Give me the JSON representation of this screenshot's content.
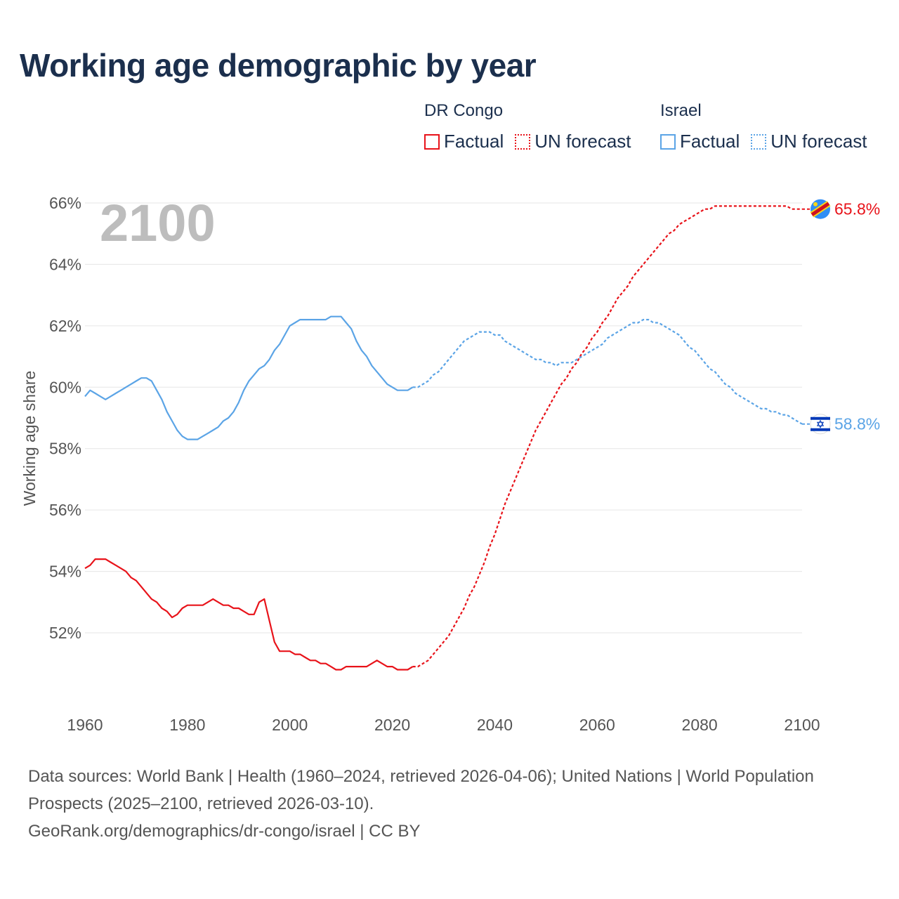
{
  "title": "Working age demographic by year",
  "colors": {
    "congo": "#e8131a",
    "israel": "#5ba4e6",
    "title": "#1b2f4d",
    "muted": "#555555"
  },
  "legend": [
    {
      "name": "DR Congo",
      "factual": "Factual",
      "forecast": "UN forecast"
    },
    {
      "name": "Israel",
      "factual": "Factual",
      "forecast": "UN forecast"
    }
  ],
  "chart_data": {
    "type": "line",
    "title": "Working age demographic by year",
    "xlabel": "",
    "ylabel": "Working age share",
    "xlim": [
      1960,
      2100
    ],
    "ylim": [
      50,
      66.5
    ],
    "x_ticks": [
      "1960",
      "1980",
      "2000",
      "2020",
      "2040",
      "2060",
      "2080",
      "2100"
    ],
    "y_ticks": [
      "52%",
      "54%",
      "56%",
      "58%",
      "60%",
      "62%",
      "64%",
      "66%"
    ],
    "year_label": "2100",
    "forecast_start": 2024,
    "series": [
      {
        "name": "DR Congo",
        "end_label": "65.8%",
        "points": [
          [
            1960,
            54.1
          ],
          [
            1961,
            54.2
          ],
          [
            1962,
            54.4
          ],
          [
            1963,
            54.4
          ],
          [
            1964,
            54.4
          ],
          [
            1965,
            54.3
          ],
          [
            1966,
            54.2
          ],
          [
            1967,
            54.1
          ],
          [
            1968,
            54.0
          ],
          [
            1969,
            53.8
          ],
          [
            1970,
            53.7
          ],
          [
            1971,
            53.5
          ],
          [
            1972,
            53.3
          ],
          [
            1973,
            53.1
          ],
          [
            1974,
            53.0
          ],
          [
            1975,
            52.8
          ],
          [
            1976,
            52.7
          ],
          [
            1977,
            52.5
          ],
          [
            1978,
            52.6
          ],
          [
            1979,
            52.8
          ],
          [
            1980,
            52.9
          ],
          [
            1981,
            52.9
          ],
          [
            1982,
            52.9
          ],
          [
            1983,
            52.9
          ],
          [
            1984,
            53.0
          ],
          [
            1985,
            53.1
          ],
          [
            1986,
            53.0
          ],
          [
            1987,
            52.9
          ],
          [
            1988,
            52.9
          ],
          [
            1989,
            52.8
          ],
          [
            1990,
            52.8
          ],
          [
            1991,
            52.7
          ],
          [
            1992,
            52.6
          ],
          [
            1993,
            52.6
          ],
          [
            1994,
            53.0
          ],
          [
            1995,
            53.1
          ],
          [
            1996,
            52.4
          ],
          [
            1997,
            51.7
          ],
          [
            1998,
            51.4
          ],
          [
            1999,
            51.4
          ],
          [
            2000,
            51.4
          ],
          [
            2001,
            51.3
          ],
          [
            2002,
            51.3
          ],
          [
            2003,
            51.2
          ],
          [
            2004,
            51.1
          ],
          [
            2005,
            51.1
          ],
          [
            2006,
            51.0
          ],
          [
            2007,
            51.0
          ],
          [
            2008,
            50.9
          ],
          [
            2009,
            50.8
          ],
          [
            2010,
            50.8
          ],
          [
            2011,
            50.9
          ],
          [
            2012,
            50.9
          ],
          [
            2013,
            50.9
          ],
          [
            2014,
            50.9
          ],
          [
            2015,
            50.9
          ],
          [
            2016,
            51.0
          ],
          [
            2017,
            51.1
          ],
          [
            2018,
            51.0
          ],
          [
            2019,
            50.9
          ],
          [
            2020,
            50.9
          ],
          [
            2021,
            50.8
          ],
          [
            2022,
            50.8
          ],
          [
            2023,
            50.8
          ],
          [
            2024,
            50.9
          ],
          [
            2025,
            50.9
          ],
          [
            2026,
            51.0
          ],
          [
            2027,
            51.1
          ],
          [
            2028,
            51.3
          ],
          [
            2029,
            51.5
          ],
          [
            2030,
            51.7
          ],
          [
            2031,
            51.9
          ],
          [
            2032,
            52.2
          ],
          [
            2033,
            52.5
          ],
          [
            2034,
            52.8
          ],
          [
            2035,
            53.2
          ],
          [
            2036,
            53.5
          ],
          [
            2037,
            53.9
          ],
          [
            2038,
            54.3
          ],
          [
            2039,
            54.8
          ],
          [
            2040,
            55.2
          ],
          [
            2041,
            55.7
          ],
          [
            2042,
            56.2
          ],
          [
            2043,
            56.6
          ],
          [
            2044,
            57.0
          ],
          [
            2045,
            57.4
          ],
          [
            2046,
            57.8
          ],
          [
            2047,
            58.2
          ],
          [
            2048,
            58.6
          ],
          [
            2049,
            58.9
          ],
          [
            2050,
            59.2
          ],
          [
            2051,
            59.5
          ],
          [
            2052,
            59.8
          ],
          [
            2053,
            60.1
          ],
          [
            2054,
            60.3
          ],
          [
            2055,
            60.6
          ],
          [
            2056,
            60.8
          ],
          [
            2057,
            61.1
          ],
          [
            2058,
            61.3
          ],
          [
            2059,
            61.6
          ],
          [
            2060,
            61.8
          ],
          [
            2061,
            62.1
          ],
          [
            2062,
            62.3
          ],
          [
            2063,
            62.6
          ],
          [
            2064,
            62.9
          ],
          [
            2065,
            63.1
          ],
          [
            2066,
            63.3
          ],
          [
            2067,
            63.6
          ],
          [
            2068,
            63.8
          ],
          [
            2069,
            64.0
          ],
          [
            2070,
            64.2
          ],
          [
            2071,
            64.4
          ],
          [
            2072,
            64.6
          ],
          [
            2073,
            64.8
          ],
          [
            2074,
            65.0
          ],
          [
            2075,
            65.1
          ],
          [
            2076,
            65.3
          ],
          [
            2077,
            65.4
          ],
          [
            2078,
            65.5
          ],
          [
            2079,
            65.6
          ],
          [
            2080,
            65.7
          ],
          [
            2081,
            65.8
          ],
          [
            2082,
            65.8
          ],
          [
            2083,
            65.9
          ],
          [
            2084,
            65.9
          ],
          [
            2085,
            65.9
          ],
          [
            2086,
            65.9
          ],
          [
            2087,
            65.9
          ],
          [
            2088,
            65.9
          ],
          [
            2089,
            65.9
          ],
          [
            2090,
            65.9
          ],
          [
            2091,
            65.9
          ],
          [
            2092,
            65.9
          ],
          [
            2093,
            65.9
          ],
          [
            2094,
            65.9
          ],
          [
            2095,
            65.9
          ],
          [
            2096,
            65.9
          ],
          [
            2097,
            65.9
          ],
          [
            2098,
            65.8
          ],
          [
            2099,
            65.8
          ],
          [
            2100,
            65.8
          ]
        ]
      },
      {
        "name": "Israel",
        "end_label": "58.8%",
        "points": [
          [
            1960,
            59.7
          ],
          [
            1961,
            59.9
          ],
          [
            1962,
            59.8
          ],
          [
            1963,
            59.7
          ],
          [
            1964,
            59.6
          ],
          [
            1965,
            59.7
          ],
          [
            1966,
            59.8
          ],
          [
            1967,
            59.9
          ],
          [
            1968,
            60.0
          ],
          [
            1969,
            60.1
          ],
          [
            1970,
            60.2
          ],
          [
            1971,
            60.3
          ],
          [
            1972,
            60.3
          ],
          [
            1973,
            60.2
          ],
          [
            1974,
            59.9
          ],
          [
            1975,
            59.6
          ],
          [
            1976,
            59.2
          ],
          [
            1977,
            58.9
          ],
          [
            1978,
            58.6
          ],
          [
            1979,
            58.4
          ],
          [
            1980,
            58.3
          ],
          [
            1981,
            58.3
          ],
          [
            1982,
            58.3
          ],
          [
            1983,
            58.4
          ],
          [
            1984,
            58.5
          ],
          [
            1985,
            58.6
          ],
          [
            1986,
            58.7
          ],
          [
            1987,
            58.9
          ],
          [
            1988,
            59.0
          ],
          [
            1989,
            59.2
          ],
          [
            1990,
            59.5
          ],
          [
            1991,
            59.9
          ],
          [
            1992,
            60.2
          ],
          [
            1993,
            60.4
          ],
          [
            1994,
            60.6
          ],
          [
            1995,
            60.7
          ],
          [
            1996,
            60.9
          ],
          [
            1997,
            61.2
          ],
          [
            1998,
            61.4
          ],
          [
            1999,
            61.7
          ],
          [
            2000,
            62.0
          ],
          [
            2001,
            62.1
          ],
          [
            2002,
            62.2
          ],
          [
            2003,
            62.2
          ],
          [
            2004,
            62.2
          ],
          [
            2005,
            62.2
          ],
          [
            2006,
            62.2
          ],
          [
            2007,
            62.2
          ],
          [
            2008,
            62.3
          ],
          [
            2009,
            62.3
          ],
          [
            2010,
            62.3
          ],
          [
            2011,
            62.1
          ],
          [
            2012,
            61.9
          ],
          [
            2013,
            61.5
          ],
          [
            2014,
            61.2
          ],
          [
            2015,
            61.0
          ],
          [
            2016,
            60.7
          ],
          [
            2017,
            60.5
          ],
          [
            2018,
            60.3
          ],
          [
            2019,
            60.1
          ],
          [
            2020,
            60.0
          ],
          [
            2021,
            59.9
          ],
          [
            2022,
            59.9
          ],
          [
            2023,
            59.9
          ],
          [
            2024,
            60.0
          ],
          [
            2025,
            60.0
          ],
          [
            2026,
            60.1
          ],
          [
            2027,
            60.2
          ],
          [
            2028,
            60.4
          ],
          [
            2029,
            60.5
          ],
          [
            2030,
            60.7
          ],
          [
            2031,
            60.9
          ],
          [
            2032,
            61.1
          ],
          [
            2033,
            61.3
          ],
          [
            2034,
            61.5
          ],
          [
            2035,
            61.6
          ],
          [
            2036,
            61.7
          ],
          [
            2037,
            61.8
          ],
          [
            2038,
            61.8
          ],
          [
            2039,
            61.8
          ],
          [
            2040,
            61.7
          ],
          [
            2041,
            61.7
          ],
          [
            2042,
            61.5
          ],
          [
            2043,
            61.4
          ],
          [
            2044,
            61.3
          ],
          [
            2045,
            61.2
          ],
          [
            2046,
            61.1
          ],
          [
            2047,
            61.0
          ],
          [
            2048,
            60.9
          ],
          [
            2049,
            60.9
          ],
          [
            2050,
            60.8
          ],
          [
            2051,
            60.8
          ],
          [
            2052,
            60.7
          ],
          [
            2053,
            60.8
          ],
          [
            2054,
            60.8
          ],
          [
            2055,
            60.8
          ],
          [
            2056,
            60.9
          ],
          [
            2057,
            61.0
          ],
          [
            2058,
            61.1
          ],
          [
            2059,
            61.2
          ],
          [
            2060,
            61.3
          ],
          [
            2061,
            61.4
          ],
          [
            2062,
            61.6
          ],
          [
            2063,
            61.7
          ],
          [
            2064,
            61.8
          ],
          [
            2065,
            61.9
          ],
          [
            2066,
            62.0
          ],
          [
            2067,
            62.1
          ],
          [
            2068,
            62.1
          ],
          [
            2069,
            62.2
          ],
          [
            2070,
            62.2
          ],
          [
            2071,
            62.1
          ],
          [
            2072,
            62.1
          ],
          [
            2073,
            62.0
          ],
          [
            2074,
            61.9
          ],
          [
            2075,
            61.8
          ],
          [
            2076,
            61.7
          ],
          [
            2077,
            61.5
          ],
          [
            2078,
            61.3
          ],
          [
            2079,
            61.2
          ],
          [
            2080,
            61.0
          ],
          [
            2081,
            60.8
          ],
          [
            2082,
            60.6
          ],
          [
            2083,
            60.5
          ],
          [
            2084,
            60.3
          ],
          [
            2085,
            60.1
          ],
          [
            2086,
            60.0
          ],
          [
            2087,
            59.8
          ],
          [
            2088,
            59.7
          ],
          [
            2089,
            59.6
          ],
          [
            2090,
            59.5
          ],
          [
            2091,
            59.4
          ],
          [
            2092,
            59.3
          ],
          [
            2093,
            59.3
          ],
          [
            2094,
            59.2
          ],
          [
            2095,
            59.2
          ],
          [
            2096,
            59.1
          ],
          [
            2097,
            59.1
          ],
          [
            2098,
            59.0
          ],
          [
            2099,
            58.9
          ],
          [
            2100,
            58.8
          ]
        ]
      }
    ]
  },
  "footer": {
    "line1": "Data sources: World Bank | Health (1960–2024, retrieved 2026-04-06); United Nations | World Population Prospects (2025–2100, retrieved 2026-03-10).",
    "line2": "GeoRank.org/demographics/dr-congo/israel | CC BY"
  }
}
